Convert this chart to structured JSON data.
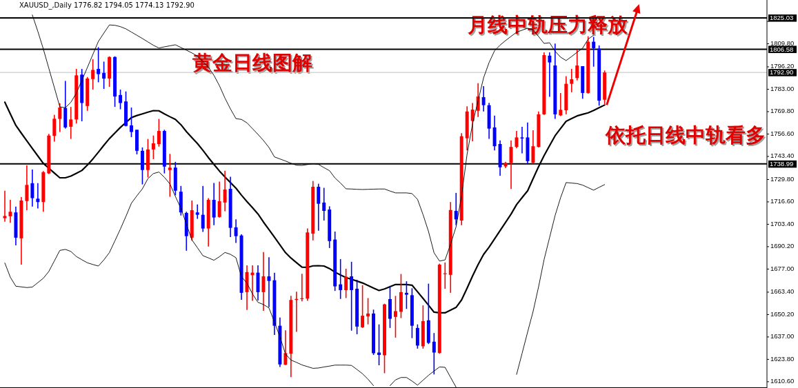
{
  "chart_data": {
    "type": "candlestick",
    "title": "黄金日线图解",
    "annotations": [
      "XAUUSD_,Daily  1776.82 1794.05 1774.13 1792.90",
      "月线中轨压力释放",
      "依托日线中轨看多"
    ],
    "categories": [
      null,
      null,
      null,
      null,
      null,
      null,
      null,
      null,
      null,
      null,
      null,
      null,
      null,
      null,
      null,
      null,
      null,
      null,
      null,
      null,
      null,
      null,
      null,
      null,
      null,
      null,
      null,
      null,
      null,
      null,
      null,
      null,
      null,
      null,
      null,
      null,
      null,
      null,
      null,
      null,
      null,
      null,
      null,
      null,
      null,
      null,
      null,
      null,
      null,
      null,
      null,
      null,
      null,
      null,
      null,
      null,
      null,
      null,
      null,
      null,
      null,
      null,
      null,
      null,
      null,
      null,
      null,
      null,
      null,
      null,
      null,
      null,
      null,
      null,
      null,
      null,
      null,
      null,
      null,
      null,
      null,
      null,
      null,
      null,
      null,
      null,
      null,
      null,
      null,
      null,
      null,
      null,
      null,
      null,
      null,
      null,
      null,
      null,
      null,
      null,
      null,
      null,
      null,
      null,
      null,
      null,
      null,
      null,
      null,
      null,
      null,
      null,
      null,
      null,
      null,
      null,
      null,
      null,
      null,
      null,
      null,
      null,
      null,
      null,
      null,
      null,
      null,
      null,
      null,
      null,
      null,
      null,
      null,
      null,
      null,
      null,
      null,
      null,
      null
    ],
    "ohlc": [
      [
        1707.0,
        1723.2,
        1704.9,
        1708.3
      ],
      [
        1708.1,
        1717.8,
        1704.3,
        1710.8
      ],
      [
        1710.4,
        1713.8,
        1691.0,
        1695.5
      ],
      [
        1695.1,
        1719.4,
        1679.6,
        1717.4
      ],
      [
        1717.1,
        1738.1,
        1711.7,
        1726.6
      ],
      [
        1727.6,
        1735.7,
        1713.8,
        1718.8
      ],
      [
        1718.5,
        1727.6,
        1712.7,
        1716.5
      ],
      [
        1716.5,
        1734.8,
        1710.8,
        1734.1
      ],
      [
        1733.4,
        1756.7,
        1733.0,
        1755.7
      ],
      [
        1755.5,
        1767.9,
        1752.1,
        1765.6
      ],
      [
        1765.5,
        1774.7,
        1757.8,
        1772.2
      ],
      [
        1772.0,
        1787.9,
        1759.8,
        1760.5
      ],
      [
        1760.9,
        1772.6,
        1753.7,
        1765.2
      ],
      [
        1765.2,
        1795.0,
        1762.8,
        1791.2
      ],
      [
        1791.6,
        1795.0,
        1764.1,
        1774.9
      ],
      [
        1773.1,
        1790.2,
        1770.3,
        1789.3
      ],
      [
        1789.0,
        1800.7,
        1782.8,
        1794.4
      ],
      [
        1795.0,
        1807.8,
        1787.1,
        1791.9
      ],
      [
        1792.6,
        1799.3,
        1783.2,
        1789.3
      ],
      [
        1789.3,
        1802.4,
        1784.4,
        1802.0
      ],
      [
        1802.0,
        1802.4,
        1772.6,
        1778.7
      ],
      [
        1779.6,
        1782.8,
        1771.2,
        1774.9
      ],
      [
        1775.8,
        1781.7,
        1761.1,
        1761.4
      ],
      [
        1761.7,
        1772.2,
        1754.8,
        1757.8
      ],
      [
        1759.1,
        1759.1,
        1744.6,
        1746.7
      ],
      [
        1746.7,
        1748.7,
        1726.9,
        1735.4
      ],
      [
        1735.4,
        1753.7,
        1731.0,
        1747.5
      ],
      [
        1747.5,
        1755.7,
        1741.8,
        1751.1
      ],
      [
        1750.7,
        1765.5,
        1749.2,
        1758.4
      ],
      [
        1758.4,
        1759.1,
        1733.4,
        1737.4
      ],
      [
        1735.4,
        1744.9,
        1719.6,
        1736.8
      ],
      [
        1736.8,
        1740.2,
        1720.5,
        1723.2
      ],
      [
        1722.6,
        1726.0,
        1708.6,
        1710.4
      ],
      [
        1710.1,
        1710.8,
        1687.8,
        1696.4
      ],
      [
        1695.5,
        1717.4,
        1693.7,
        1711.7
      ],
      [
        1710.4,
        1715.1,
        1706.6,
        1709.0
      ],
      [
        1709.0,
        1726.0,
        1698.9,
        1700.9
      ],
      [
        1700.9,
        1718.8,
        1690.3,
        1717.8
      ],
      [
        1717.8,
        1727.7,
        1702.9,
        1707.4
      ],
      [
        1707.7,
        1728.6,
        1707.3,
        1717.0
      ],
      [
        1716.2,
        1735.0,
        1711.1,
        1723.9
      ],
      [
        1724.3,
        1731.4,
        1695.9,
        1701.3
      ],
      [
        1701.6,
        1706.3,
        1692.4,
        1696.4
      ],
      [
        1696.8,
        1697.5,
        1658.9,
        1663.0
      ],
      [
        1663.4,
        1679.2,
        1652.9,
        1675.2
      ],
      [
        1673.4,
        1679.2,
        1658.3,
        1674.9
      ],
      [
        1674.9,
        1679.2,
        1658.5,
        1663.4
      ],
      [
        1663.4,
        1687.0,
        1652.4,
        1672.7
      ],
      [
        1672.7,
        1684.0,
        1654.5,
        1670.0
      ],
      [
        1670.4,
        1674.8,
        1638.2,
        1643.6
      ],
      [
        1643.6,
        1648.4,
        1619.3,
        1620.8
      ],
      [
        1620.6,
        1640.9,
        1620.4,
        1627.5
      ],
      [
        1627.1,
        1661.2,
        1613.3,
        1658.8
      ],
      [
        1658.8,
        1663.7,
        1640.0,
        1659.4
      ],
      [
        1659.4,
        1674.2,
        1658.0,
        1659.8
      ],
      [
        1659.6,
        1700.9,
        1658.3,
        1698.6
      ],
      [
        1697.9,
        1728.9,
        1693.9,
        1725.5
      ],
      [
        1725.5,
        1727.3,
        1699.6,
        1715.5
      ],
      [
        1716.2,
        1724.9,
        1705.6,
        1711.3
      ],
      [
        1712.1,
        1714.0,
        1689.4,
        1693.5
      ],
      [
        1694.4,
        1699.1,
        1664.1,
        1666.8
      ],
      [
        1668.0,
        1682.9,
        1659.4,
        1664.6
      ],
      [
        1664.6,
        1677.2,
        1659.9,
        1672.5
      ],
      [
        1672.7,
        1681.3,
        1640.7,
        1664.6
      ],
      [
        1665.4,
        1670.7,
        1638.6,
        1643.1
      ],
      [
        1642.7,
        1667.5,
        1642.3,
        1649.5
      ],
      [
        1649.1,
        1659.9,
        1644.4,
        1650.8
      ],
      [
        1650.8,
        1653.1,
        1626.4,
        1627.4
      ],
      [
        1627.8,
        1644.4,
        1620.3,
        1626.4
      ],
      [
        1626.2,
        1656.6,
        1615.6,
        1656.2
      ],
      [
        1659.3,
        1667.1,
        1642.3,
        1647.7
      ],
      [
        1648.8,
        1661.2,
        1636.6,
        1652.2
      ],
      [
        1651.8,
        1674.1,
        1648.1,
        1663.4
      ],
      [
        1663.0,
        1669.8,
        1653.5,
        1661.9
      ],
      [
        1661.6,
        1665.7,
        1636.3,
        1643.6
      ],
      [
        1642.3,
        1644.4,
        1630.1,
        1631.9
      ],
      [
        1631.5,
        1655.6,
        1630.1,
        1646.3
      ],
      [
        1646.8,
        1668.4,
        1632.8,
        1633.5
      ],
      [
        1634.2,
        1639.3,
        1614.9,
        1627.8
      ],
      [
        1627.5,
        1680.2,
        1627.1,
        1679.6
      ],
      [
        1674.1,
        1680.9,
        1665.4,
        1674.5
      ],
      [
        1673.6,
        1716.5,
        1663.0,
        1711.8
      ],
      [
        1711.3,
        1721.9,
        1702.9,
        1706.3
      ],
      [
        1705.6,
        1757.1,
        1702.9,
        1755.3
      ],
      [
        1754.1,
        1772.9,
        1746.9,
        1769.9
      ],
      [
        1764.3,
        1774.9,
        1752.3,
        1771.0
      ],
      [
        1770.3,
        1786.6,
        1766.6,
        1778.7
      ],
      [
        1778.3,
        1784.8,
        1769.9,
        1773.6
      ],
      [
        1773.6,
        1775.0,
        1753.7,
        1759.8
      ],
      [
        1760.5,
        1767.5,
        1746.9,
        1749.4
      ],
      [
        1750.7,
        1752.8,
        1732.0,
        1737.0
      ],
      [
        1737.5,
        1740.2,
        1736.5,
        1739.5
      ],
      [
        1739.5,
        1752.8,
        1724.2,
        1749.0
      ],
      [
        1749.0,
        1758.4,
        1748.3,
        1754.6
      ],
      [
        1754.6,
        1760.9,
        1745.2,
        1754.0
      ],
      [
        1754.6,
        1763.4,
        1739.2,
        1740.6
      ],
      [
        1739.7,
        1758.8,
        1739.2,
        1749.4
      ],
      [
        1749.0,
        1769.9,
        1748.7,
        1768.2
      ],
      [
        1768.2,
        1804.7,
        1767.9,
        1803.1
      ],
      [
        1802.8,
        1804.7,
        1778.5,
        1798.8
      ],
      [
        1797.0,
        1809.9,
        1765.5,
        1768.2
      ],
      [
        1767.6,
        1780.8,
        1767.2,
        1770.9
      ],
      [
        1770.6,
        1790.7,
        1768.2,
        1786.2
      ],
      [
        1786.2,
        1795.0,
        1781.2,
        1788.9
      ],
      [
        1789.6,
        1806.5,
        1788.2,
        1797.0
      ],
      [
        1796.6,
        1796.6,
        1777.4,
        1780.8
      ],
      [
        1780.8,
        1814.2,
        1780.4,
        1811.0
      ],
      [
        1811.0,
        1813.9,
        1796.3,
        1807.2
      ],
      [
        1806.9,
        1808.8,
        1773.3,
        1776.3
      ],
      [
        1776.82,
        1794.05,
        1774.13,
        1792.9
      ],
      null,
      null,
      null,
      null,
      null,
      null,
      null,
      null,
      null,
      null,
      null,
      null,
      null,
      null,
      null,
      null,
      null,
      null,
      null,
      null,
      null,
      null,
      null,
      null,
      null,
      null,
      null,
      null,
      null
    ],
    "colors": [
      "#ff0000",
      "#ff0000",
      "#0000ff",
      "#ff0000",
      "#ff0000",
      "#0000ff",
      "#0000ff",
      "#ff0000",
      "#ff0000",
      "#ff0000",
      "#ff0000",
      "#0000ff",
      "#ff0000",
      "#ff0000",
      "#0000ff",
      "#ff0000",
      "#ff0000",
      "#0000ff",
      "#0000ff",
      "#ff0000",
      "#0000ff",
      "#0000ff",
      "#0000ff",
      "#0000ff",
      "#0000ff",
      "#0000ff",
      "#ff0000",
      "#ff0000",
      "#ff0000",
      "#0000ff",
      "#ff0000",
      "#0000ff",
      "#0000ff",
      "#0000ff",
      "#ff0000",
      "#0000ff",
      "#0000ff",
      "#ff0000",
      "#0000ff",
      "#ff0000",
      "#ff0000",
      "#0000ff",
      "#0000ff",
      "#0000ff",
      "#ff0000",
      "#ff0000",
      "#0000ff",
      "#ff0000",
      "#0000ff",
      "#0000ff",
      "#0000ff",
      "#ff0000",
      "#ff0000",
      "#ff0000",
      "#ff0000",
      "#ff0000",
      "#ff0000",
      "#0000ff",
      "#0000ff",
      "#0000ff",
      "#0000ff",
      "#0000ff",
      "#ff0000",
      "#0000ff",
      "#0000ff",
      "#ff0000",
      "#ff0000",
      "#0000ff",
      "#0000ff",
      "#ff0000",
      "#0000ff",
      "#ff0000",
      "#ff0000",
      "#0000ff",
      "#0000ff",
      "#0000ff",
      "#ff0000",
      "#0000ff",
      "#0000ff",
      "#ff0000",
      "#ff0000",
      "#ff0000",
      "#0000ff",
      "#ff0000",
      "#ff0000",
      "#ff0000",
      "#ff0000",
      "#0000ff",
      "#0000ff",
      "#0000ff",
      "#0000ff",
      "#ff0000",
      "#ff0000",
      "#ff0000",
      "#0000ff",
      "#0000ff",
      "#ff0000",
      "#ff0000",
      "#ff0000",
      "#0000ff",
      "#0000ff",
      "#ff0000",
      "#ff0000",
      "#ff0000",
      "#ff0000",
      "#0000ff",
      "#ff0000",
      "#0000ff",
      "#0000ff",
      "#ff0000",
      null,
      null,
      null,
      null,
      null,
      null,
      null,
      null,
      null,
      null,
      null,
      null,
      null,
      null,
      null,
      null,
      null,
      null,
      null,
      null,
      null,
      null,
      null,
      null,
      null,
      null,
      null,
      null,
      null
    ],
    "series": [
      {
        "type": "line",
        "color": "#000000",
        "values": [
          1775.4,
          1768.5,
          1761.7,
          1757.1,
          1752.6,
          1748.1,
          1743.7,
          1739.3,
          1736.5,
          1733.6,
          1730.8,
          1730.8,
          1731.8,
          1733.4,
          1735.1,
          1738.3,
          1741.9,
          1745.9,
          1750.0,
          1753.9,
          1757.2,
          1760.5,
          1763.4,
          1766.3,
          1767.5,
          1768.5,
          1769.5,
          1770.4,
          1770.3,
          1768.5,
          1766.8,
          1765.2,
          1762.1,
          1758.0,
          1754.5,
          1751.0,
          1747.0,
          1742.7,
          1738.7,
          1734.8,
          1731.3,
          1728.0,
          1724.7,
          1720.6,
          1716.8,
          1713.2,
          1709.5,
          1704.7,
          1700.3,
          1695.8,
          1691.2,
          1686.7,
          1683.5,
          1680.8,
          1678.1,
          1678.0,
          1678.9,
          1679.0,
          1678.8,
          1677.3,
          1675.2,
          1673.5,
          1672.0,
          1671.0,
          1669.9,
          1668.8,
          1667.3,
          1665.8,
          1664.4,
          1665.3,
          1666.6,
          1667.9,
          1667.9,
          1667.9,
          1667.5,
          1663.6,
          1659.7,
          1655.7,
          1651.6,
          1651.2,
          1651.2,
          1652.8,
          1654.4,
          1658.8,
          1665.7,
          1672.9,
          1679.6,
          1685.6,
          1689.9,
          1694.8,
          1699.7,
          1704.5,
          1709.4,
          1715.0,
          1719.1,
          1723.1,
          1730.3,
          1737.4,
          1743.9,
          1749.8,
          1755.6,
          1759.9,
          1764.1,
          1765.7,
          1767.3,
          1768.2,
          1769.1,
          1770.5,
          1772.1,
          1773.7,
          null,
          null,
          null,
          null,
          null,
          null,
          null,
          null,
          null,
          null,
          null,
          null,
          null,
          null,
          null,
          null,
          null,
          null,
          null,
          null,
          null,
          null,
          null,
          null,
          null,
          null,
          null,
          null,
          null
        ]
      },
      {
        "type": "line",
        "color": "#000000",
        "values": [
          null,
          null,
          null,
          null,
          null,
          1826.8,
          1817.1,
          1806.7,
          1795.3,
          1784.0,
          1772.6,
          1772.1,
          1775.3,
          1780.7,
          1788.2,
          1795.8,
          1803.5,
          1811.2,
          1816.1,
          1820.9,
          1820.7,
          1819.9,
          1818.6,
          1816.7,
          1814.8,
          1812.9,
          1810.9,
          1808.9,
          1807.3,
          1808.0,
          1808.6,
          1809.2,
          1807.6,
          1806.0,
          1804.4,
          1802.5,
          1799.2,
          1796.0,
          1791.2,
          1785.1,
          1777.8,
          1771.4,
          1765.7,
          1765.2,
          1763.2,
          1759.8,
          1756.4,
          1752.8,
          1748.7,
          1743.1,
          1741.9,
          1740.7,
          1739.4,
          1738.2,
          1738.1,
          1738.6,
          1739.1,
          1738.7,
          1736.8,
          1735.0,
          1730.7,
          1727.7,
          1724.3,
          1724.2,
          1724.0,
          1723.9,
          1724.0,
          1724.1,
          1724.2,
          1724.2,
          1723.0,
          1721.9,
          1721.9,
          1721.9,
          1721.5,
          1718.1,
          1709.1,
          1699.1,
          1686.6,
          1681.7,
          1682.4,
          1691.6,
          1701.9,
          1720.0,
          1744.6,
          1762.6,
          1776.1,
          1789.7,
          1798.7,
          1805.7,
          1809.0,
          1811.7,
          1814.2,
          1816.6,
          1817.8,
          1819.0,
          1817.9,
          1814.1,
          1810.0,
          1810.4,
          1805.4,
          1801.9,
          1799.9,
          1802.3,
          1804.8,
          1807.2,
          1812.5,
          1814.9,
          null,
          null,
          null,
          null,
          null,
          null,
          null,
          null,
          null,
          null,
          null,
          null,
          null,
          null,
          null,
          null,
          null,
          null,
          null,
          null,
          null,
          null,
          null,
          null,
          null,
          null,
          null,
          null,
          null,
          null,
          null
        ]
      },
      {
        "type": "line",
        "color": "#000000",
        "values": [
          1680.6,
          1672.2,
          1666.9,
          1666.5,
          1666.1,
          1666.4,
          1669.0,
          1671.6,
          1675.6,
          1681.8,
          1688.0,
          1688.6,
          1687.4,
          1684.4,
          1682.5,
          1680.7,
          1679.7,
          1678.8,
          1682.4,
          1686.7,
          1693.6,
          1700.6,
          1708.0,
          1715.8,
          1720.2,
          1724.3,
          1730.3,
          1733.3,
          1734.2,
          1731.1,
          1727.2,
          1719.8,
          1712.8,
          1703.5,
          1694.2,
          1689.6,
          1684.9,
          1683.6,
          1682.2,
          1684.3,
          1686.8,
          1685.7,
          1683.7,
          1672.6,
          1668.7,
          1662.4,
          1657.4,
          1656.1,
          1654.1,
          1645.8,
          1637.0,
          1626.9,
          1623.4,
          1622.0,
          1620.5,
          1619.5,
          1618.5,
          1618.7,
          1619.3,
          1619.8,
          1620.4,
          1620.4,
          1620.4,
          1620.2,
          1617.8,
          1615.3,
          1612.1,
          1608.3,
          null,
          null,
          1608.3,
          1611.7,
          1613.1,
          1613.1,
          1611.0,
          1608.6,
          1611.5,
          1614.4,
          1616.9,
          1619.3,
          1619.1,
          1613.2,
          1607.4,
          null,
          null,
          null,
          null,
          null,
          null,
          null,
          null,
          null,
          null,
          1614.9,
          1627.3,
          1639.8,
          1652.0,
          1666.6,
          1682.6,
          1695.6,
          1708.6,
          1719.1,
          1728.0,
          1727.7,
          1727.4,
          1726.5,
          1725.0,
          1723.5,
          1725.2,
          1726.8,
          null,
          null,
          null,
          null,
          null,
          null,
          null,
          null,
          null,
          null,
          null,
          null,
          null,
          null,
          null,
          null,
          null,
          null,
          null,
          null,
          null,
          null,
          null,
          null,
          null,
          null,
          null,
          null,
          null
        ]
      }
    ],
    "ref_lines": [
      {
        "axis": "y",
        "value": 1825.03,
        "label": "1825.03",
        "color": "#000000"
      },
      {
        "axis": "y",
        "value": 1806.58,
        "label": "1806.58",
        "color": "#000000"
      },
      {
        "axis": "y",
        "value": 1792.9,
        "label": "1792.90",
        "color": "#c0c0c0"
      },
      {
        "axis": "y",
        "value": 1738.99,
        "label": "1738.99",
        "color": "#000000"
      }
    ],
    "ylim": [
      1606.9,
      1835.6
    ],
    "yticks": [
      {
        "value": 1823.0,
        "label": null
      },
      {
        "value": 1809.8,
        "label": "1809.80"
      },
      {
        "value": 1796.2,
        "label": "1796.20"
      },
      {
        "value": 1783.0,
        "label": "1783.00"
      },
      {
        "value": 1769.8,
        "label": "1769.80"
      },
      {
        "value": 1756.6,
        "label": "1756.60"
      },
      {
        "value": 1743.4,
        "label": "1743.40"
      },
      {
        "value": 1729.8,
        "label": "1729.80"
      },
      {
        "value": 1716.6,
        "label": "1716.60"
      },
      {
        "value": 1703.4,
        "label": "1703.40"
      },
      {
        "value": 1690.2,
        "label": "1690.20"
      },
      {
        "value": 1677.0,
        "label": "1677.00"
      },
      {
        "value": 1663.4,
        "label": "1663.40"
      },
      {
        "value": 1650.2,
        "label": "1650.20"
      },
      {
        "value": 1637.0,
        "label": "1637.00"
      },
      {
        "value": 1623.8,
        "label": "1623.80"
      },
      {
        "value": 1610.6,
        "label": "1610.60"
      }
    ],
    "tick_labels": "y"
  }
}
